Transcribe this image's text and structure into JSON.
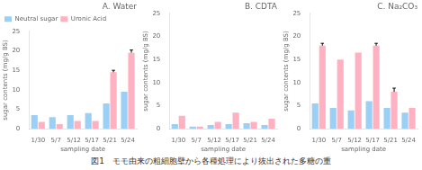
{
  "chart_data": [
    {
      "type": "bar",
      "title": "A. Water",
      "categories": [
        "1/30",
        "5/7",
        "5/12",
        "5/17",
        "5/21",
        "5/24"
      ],
      "series": [
        {
          "name": "Neutral sugar",
          "values": [
            3.5,
            3.0,
            3.5,
            4.0,
            6.5,
            9.5
          ]
        },
        {
          "name": "Uronic Acid",
          "values": [
            1.8,
            1.2,
            2.0,
            2.0,
            14.5,
            19.5
          ],
          "errors": [
            0.0,
            0.0,
            0.0,
            0.0,
            0.5,
            0.7
          ]
        }
      ],
      "x_label": "sampling date",
      "y_label": "sugar contents (mg/g BS)",
      "ylim": [
        0,
        25
      ],
      "yticks": [
        0,
        5,
        10,
        15,
        20,
        25
      ],
      "grid": false,
      "legend": "upper left",
      "annotations": [
        "図1　モモ由来の粗細胞壁から各種処理により抜出された多糖の重"
      ]
    },
    {
      "type": "bar",
      "title": "B. CDTA",
      "categories": [
        "1/30",
        "5/7",
        "5/12",
        "5/17",
        "5/21",
        "5/24"
      ],
      "series": [
        {
          "name": "Neutral sugar",
          "values": [
            1.0,
            0.5,
            0.8,
            1.0,
            1.2,
            0.8
          ]
        },
        {
          "name": "Uronic Acid",
          "values": [
            2.8,
            0.5,
            1.5,
            3.5,
            1.5,
            2.2
          ],
          "errors": [
            0.0,
            0.0,
            0.0,
            0.0,
            0.0,
            0.0
          ]
        }
      ],
      "x_label": "sampling date",
      "y_label": "sugar contents (mg/g BS)",
      "ylim": [
        0,
        25
      ],
      "yticks": [
        0,
        5,
        10,
        15,
        20,
        25
      ],
      "grid": false
    },
    {
      "type": "bar",
      "title": "C. Na₂CO₃",
      "categories": [
        "1/30",
        "5/7",
        "5/12",
        "5/17",
        "5/21",
        "5/24"
      ],
      "series": [
        {
          "name": "Neutral sugar",
          "values": [
            5.5,
            4.5,
            4.0,
            6.0,
            4.5,
            3.5
          ]
        },
        {
          "name": "Uronic Acid",
          "values": [
            18.0,
            15.0,
            16.5,
            18.0,
            8.0,
            4.5
          ],
          "errors": [
            0.5,
            0.0,
            0.0,
            0.5,
            0.8,
            0.0
          ]
        }
      ],
      "x_label": "sampling date",
      "y_label": "sugar contents (mg/g BS)",
      "ylim": [
        0,
        25
      ],
      "yticks": [
        0,
        5,
        10,
        15,
        20,
        25
      ],
      "grid": false
    }
  ]
}
